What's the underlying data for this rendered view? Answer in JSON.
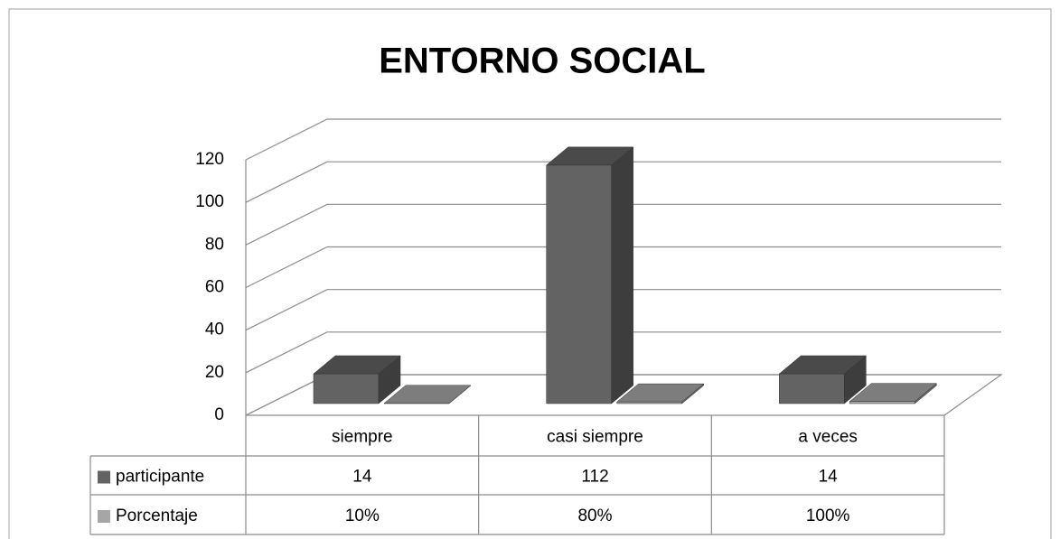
{
  "chart_data": {
    "type": "bar3d",
    "title": "ENTORNO SOCIAL",
    "categories": [
      "siempre",
      "casi siempre",
      "a veces"
    ],
    "series": [
      {
        "name": "participante",
        "color": "#636363",
        "values": [
          14,
          112,
          14
        ]
      },
      {
        "name": "Porcentaje",
        "color": "#a6a6a6",
        "values": [
          0.1,
          0.8,
          1
        ],
        "value_labels": [
          "10%",
          "80%",
          "100%"
        ]
      }
    ],
    "ylim": [
      0,
      120
    ],
    "yticks": [
      0,
      20,
      40,
      60,
      80,
      100,
      120
    ],
    "grid": true
  }
}
